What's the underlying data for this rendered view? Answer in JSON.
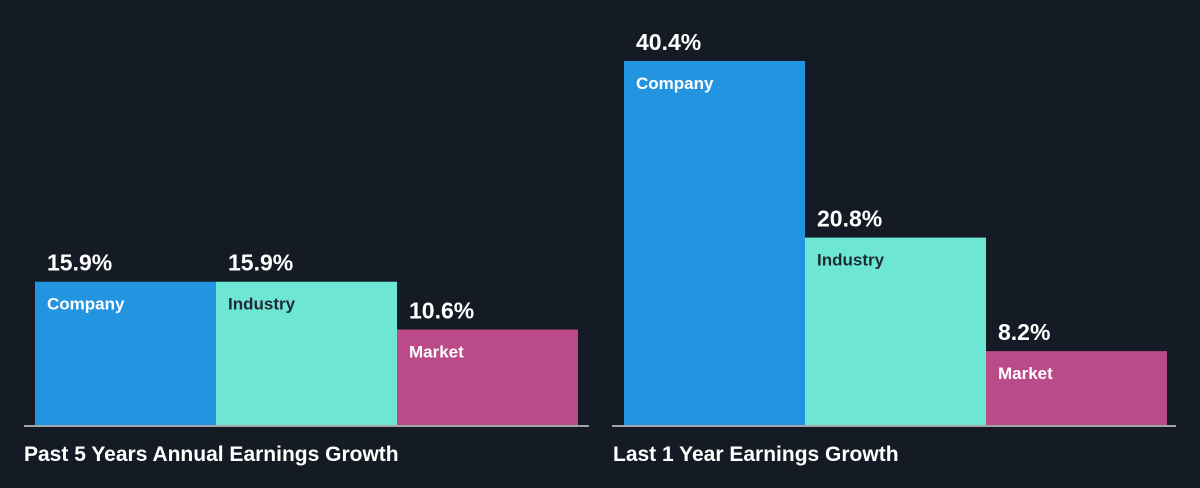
{
  "colors": {
    "background": "#151b24",
    "company": "#2394e0",
    "industry": "#6ee6d4",
    "market": "#bb4a88",
    "baseline": "#d0d4da",
    "value_text": "#ffffff",
    "label_text_dark": "#1f2a33",
    "label_text_light": "#ffffff"
  },
  "chart_data": [
    {
      "type": "bar",
      "title": "Past 5 Years Annual Earnings Growth",
      "categories": [
        "Company",
        "Industry",
        "Market"
      ],
      "values": [
        15.9,
        15.9,
        10.6
      ],
      "value_labels": [
        "15.9%",
        "15.9%",
        "10.6%"
      ],
      "ylim": [
        0,
        40.4
      ],
      "grid": false,
      "legend": "none"
    },
    {
      "type": "bar",
      "title": "Last 1 Year Earnings Growth",
      "categories": [
        "Company",
        "Industry",
        "Market"
      ],
      "values": [
        40.4,
        20.8,
        8.2
      ],
      "value_labels": [
        "40.4%",
        "20.8%",
        "8.2%"
      ],
      "ylim": [
        0,
        40.4
      ],
      "grid": false,
      "legend": "none"
    }
  ]
}
